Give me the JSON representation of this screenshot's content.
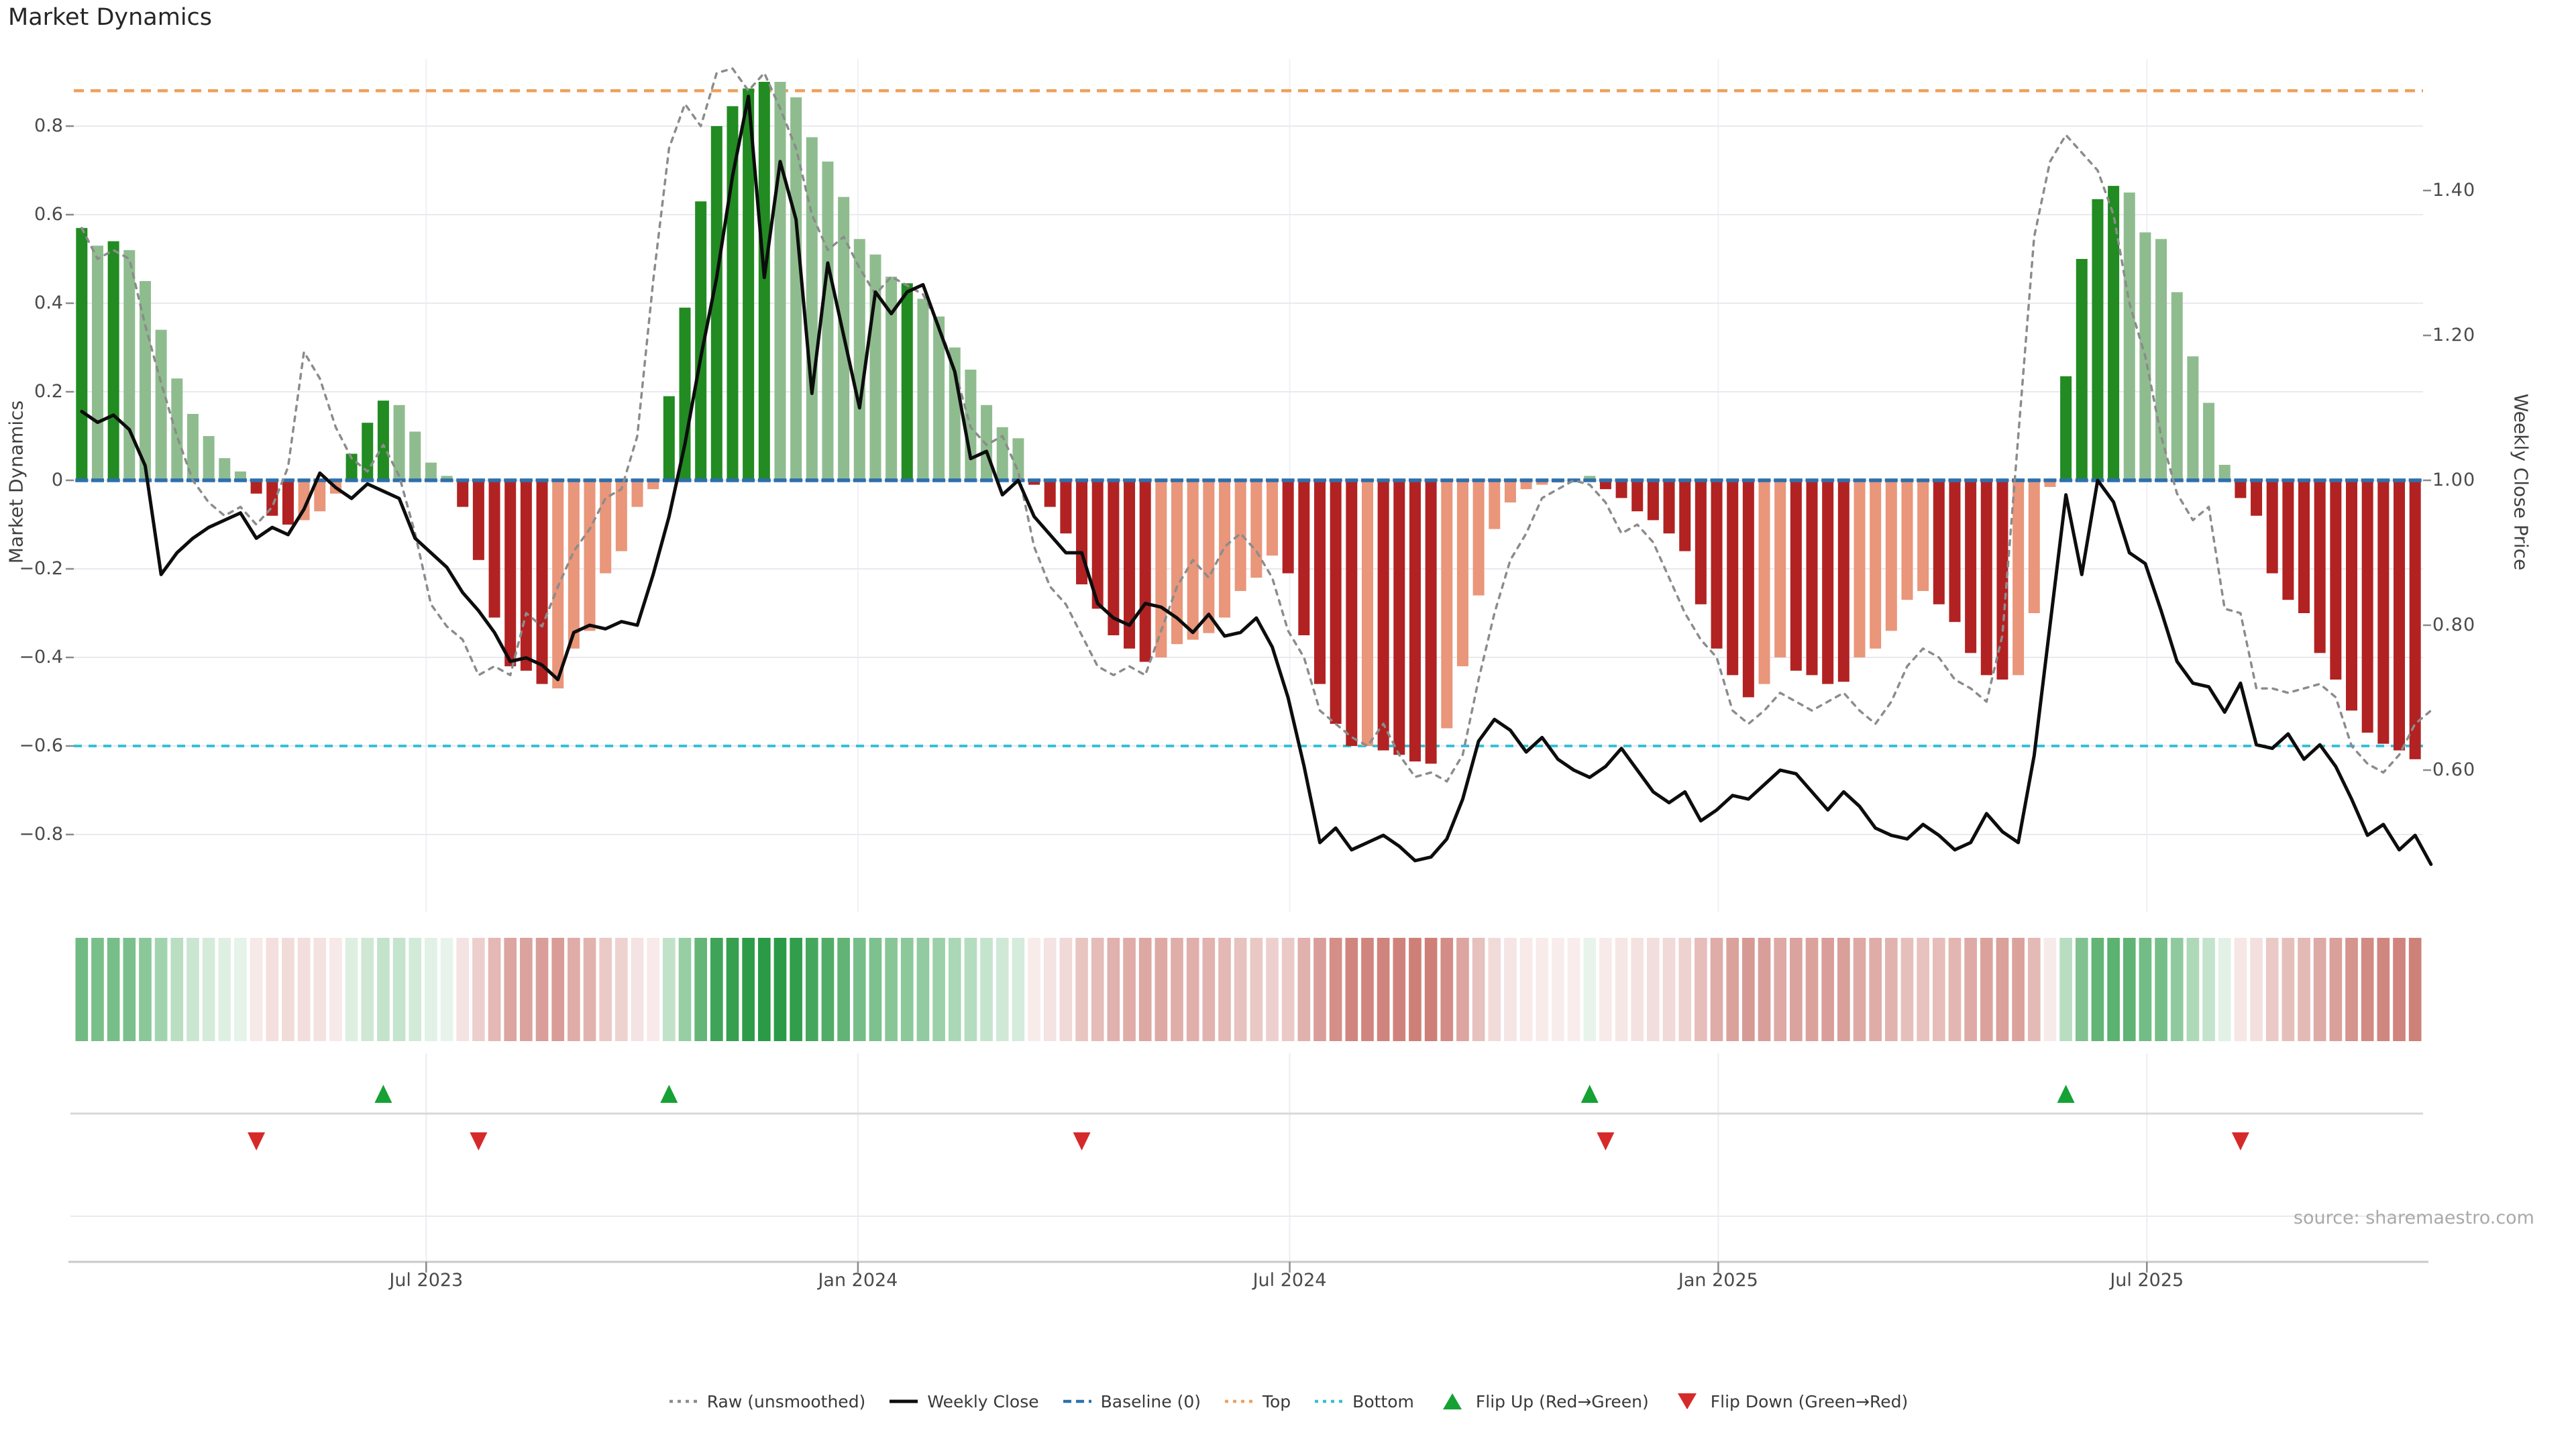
{
  "title": "Market Dynamics",
  "source": "source: sharemaestro.com",
  "axes": {
    "left": {
      "label": "Market Dynamics",
      "ticks": [
        {
          "v": 0.8,
          "label": "0.8"
        },
        {
          "v": 0.6,
          "label": "0.6"
        },
        {
          "v": 0.4,
          "label": "0.4"
        },
        {
          "v": 0.2,
          "label": "0.2"
        },
        {
          "v": 0.0,
          "label": "0"
        },
        {
          "v": -0.2,
          "label": "−0.2"
        },
        {
          "v": -0.4,
          "label": "−0.4"
        },
        {
          "v": -0.6,
          "label": "−0.6"
        },
        {
          "v": -0.8,
          "label": "−0.8"
        }
      ]
    },
    "right": {
      "label": "Weekly Close Price",
      "ticks": [
        {
          "v": 1.4,
          "label": "1.40"
        },
        {
          "v": 1.2,
          "label": "1.20"
        },
        {
          "v": 1.0,
          "label": "1.00"
        },
        {
          "v": 0.8,
          "label": "0.80"
        },
        {
          "v": 0.6,
          "label": "0.60"
        }
      ]
    },
    "x": {
      "ticks": [
        {
          "week": 21.7,
          "label": "Jul 2023"
        },
        {
          "week": 48.9,
          "label": "Jan 2024"
        },
        {
          "week": 76.1,
          "label": "Jul 2024"
        },
        {
          "week": 103.1,
          "label": "Jan 2025"
        },
        {
          "week": 130.1,
          "label": "Jul 2025"
        }
      ]
    }
  },
  "legend": [
    {
      "label": "Raw (unsmoothed)",
      "type": "dotted-line",
      "color": "#8c8c8c"
    },
    {
      "label": "Weekly Close",
      "type": "solid-line",
      "color": "#0d0d0d"
    },
    {
      "label": "Baseline (0)",
      "type": "dashed-line",
      "color": "#2e6fad"
    },
    {
      "label": "Top",
      "type": "dotted-line",
      "color": "#efa05a"
    },
    {
      "label": "Bottom",
      "type": "dotted-line",
      "color": "#35c1d6"
    },
    {
      "label": "Flip Up (Red→Green)",
      "type": "triangle-up",
      "color": "#16a134"
    },
    {
      "label": "Flip Down (Green→Red)",
      "type": "triangle-down",
      "color": "#d62a2a"
    }
  ],
  "chart_data": {
    "type": "composite",
    "x_unit": "week",
    "n": 148,
    "left_axis_range": [
      -0.976,
      0.952
    ],
    "right_axis_range": [
      0.4,
      1.58
    ],
    "grid": true,
    "ref_lines": {
      "baseline": 0.0,
      "top": 0.88,
      "bottom": -0.6
    },
    "palette": {
      "pos_strong": "#228B22",
      "pos_soft": "#8FBC8F",
      "neg_strong": "#B22222",
      "neg_soft": "#E9967A",
      "baseline": "#2e6fad",
      "top": "#efa05a",
      "bottom": "#35c1d6",
      "raw": "#8c8c8c",
      "close": "#0d0d0d",
      "flip_up": "#16a134",
      "flip_down": "#d62a2a",
      "heat_pos": [
        42,
        154,
        70
      ],
      "heat_neg": [
        188,
        82,
        72
      ]
    },
    "bars": {
      "name": "Market Dynamics (smoothed)",
      "values": [
        0.57,
        0.53,
        0.54,
        0.52,
        0.45,
        0.34,
        0.23,
        0.15,
        0.1,
        0.05,
        0.02,
        -0.03,
        -0.08,
        -0.1,
        -0.09,
        -0.07,
        -0.03,
        0.06,
        0.13,
        0.18,
        0.17,
        0.11,
        0.04,
        0.01,
        -0.06,
        -0.18,
        -0.31,
        -0.42,
        -0.43,
        -0.46,
        -0.47,
        -0.38,
        -0.34,
        -0.21,
        -0.16,
        -0.06,
        -0.02,
        0.19,
        0.39,
        0.63,
        0.8,
        0.845,
        0.885,
        0.9,
        0.9,
        0.865,
        0.775,
        0.72,
        0.64,
        0.545,
        0.51,
        0.46,
        0.445,
        0.41,
        0.37,
        0.3,
        0.25,
        0.17,
        0.12,
        0.095,
        -0.01,
        -0.06,
        -0.12,
        -0.235,
        -0.29,
        -0.35,
        -0.38,
        -0.41,
        -0.4,
        -0.37,
        -0.36,
        -0.345,
        -0.31,
        -0.25,
        -0.22,
        -0.17,
        -0.21,
        -0.35,
        -0.46,
        -0.55,
        -0.6,
        -0.6,
        -0.61,
        -0.62,
        -0.635,
        -0.64,
        -0.56,
        -0.42,
        -0.26,
        -0.11,
        -0.05,
        -0.02,
        -0.01,
        -0.005,
        -0.003,
        0.01,
        -0.02,
        -0.04,
        -0.07,
        -0.09,
        -0.12,
        -0.16,
        -0.28,
        -0.38,
        -0.44,
        -0.49,
        -0.46,
        -0.4,
        -0.43,
        -0.44,
        -0.46,
        -0.455,
        -0.4,
        -0.38,
        -0.34,
        -0.27,
        -0.25,
        -0.28,
        -0.32,
        -0.39,
        -0.44,
        -0.45,
        -0.44,
        -0.3,
        -0.015,
        0.235,
        0.5,
        0.635,
        0.665,
        0.65,
        0.56,
        0.545,
        0.425,
        0.28,
        0.175,
        0.035,
        -0.04,
        -0.08,
        -0.21,
        -0.27,
        -0.3,
        -0.39,
        -0.45,
        -0.52,
        -0.57,
        -0.595,
        -0.61,
        -0.63
      ],
      "color_tokens": [
        "D",
        "L",
        "D",
        "L",
        "L",
        "L",
        "L",
        "L",
        "L",
        "L",
        "L",
        "R",
        "R",
        "R",
        "S",
        "S",
        "S",
        "D",
        "D",
        "D",
        "L",
        "L",
        "L",
        "L",
        "R",
        "R",
        "R",
        "R",
        "R",
        "R",
        "S",
        "S",
        "S",
        "S",
        "S",
        "S",
        "S",
        "D",
        "D",
        "D",
        "D",
        "D",
        "D",
        "D",
        "L",
        "L",
        "L",
        "L",
        "L",
        "L",
        "L",
        "L",
        "D",
        "L",
        "L",
        "L",
        "L",
        "L",
        "L",
        "L",
        "R",
        "R",
        "R",
        "R",
        "R",
        "R",
        "R",
        "R",
        "S",
        "S",
        "S",
        "S",
        "S",
        "S",
        "S",
        "S",
        "R",
        "R",
        "R",
        "R",
        "R",
        "S",
        "R",
        "R",
        "R",
        "R",
        "S",
        "S",
        "S",
        "S",
        "S",
        "S",
        "S",
        "S",
        "S",
        "L",
        "R",
        "R",
        "R",
        "R",
        "R",
        "R",
        "R",
        "R",
        "R",
        "R",
        "S",
        "S",
        "R",
        "R",
        "R",
        "R",
        "S",
        "S",
        "S",
        "S",
        "S",
        "R",
        "R",
        "R",
        "R",
        "R",
        "S",
        "S",
        "S",
        "D",
        "D",
        "D",
        "D",
        "L",
        "L",
        "L",
        "L",
        "L",
        "L",
        "L",
        "R",
        "R",
        "R",
        "R",
        "R",
        "R",
        "R",
        "R",
        "R",
        "R",
        "R",
        "R"
      ]
    },
    "series": [
      {
        "name": "Weekly Close",
        "axis": "right",
        "style": "solid",
        "color": "#0d0d0d",
        "values": [
          1.095,
          1.08,
          1.09,
          1.07,
          1.02,
          0.87,
          0.9,
          0.92,
          0.935,
          0.945,
          0.955,
          0.92,
          0.935,
          0.925,
          0.96,
          1.01,
          0.99,
          0.975,
          0.995,
          0.985,
          0.975,
          0.92,
          0.9,
          0.88,
          0.845,
          0.82,
          0.79,
          0.75,
          0.755,
          0.745,
          0.725,
          0.79,
          0.8,
          0.795,
          0.805,
          0.8,
          0.87,
          0.95,
          1.05,
          1.17,
          1.28,
          1.42,
          1.53,
          1.28,
          1.44,
          1.36,
          1.12,
          1.3,
          1.2,
          1.1,
          1.26,
          1.23,
          1.26,
          1.27,
          1.21,
          1.15,
          1.03,
          1.04,
          0.98,
          1.0,
          0.95,
          0.925,
          0.9,
          0.9,
          0.83,
          0.81,
          0.8,
          0.83,
          0.825,
          0.81,
          0.79,
          0.815,
          0.785,
          0.79,
          0.81,
          0.77,
          0.7,
          0.606,
          0.5,
          0.52,
          0.49,
          0.5,
          0.51,
          0.495,
          0.475,
          0.48,
          0.505,
          0.56,
          0.64,
          0.67,
          0.655,
          0.625,
          0.645,
          0.615,
          0.6,
          0.59,
          0.605,
          0.63,
          0.6,
          0.57,
          0.555,
          0.57,
          0.53,
          0.545,
          0.565,
          0.56,
          0.58,
          0.6,
          0.595,
          0.57,
          0.545,
          0.57,
          0.55,
          0.52,
          0.51,
          0.505,
          0.525,
          0.51,
          0.49,
          0.5,
          0.54,
          0.515,
          0.5,
          0.62,
          0.8,
          0.98,
          0.87,
          1.0,
          0.97,
          0.9,
          0.885,
          0.82,
          0.75,
          0.72,
          0.715,
          0.68,
          0.72,
          0.635,
          0.63,
          0.65,
          0.615,
          0.635,
          0.605,
          0.56,
          0.51,
          0.525,
          0.49,
          0.51,
          0.47
        ]
      },
      {
        "name": "Raw (unsmoothed)",
        "axis": "left",
        "style": "dotted",
        "color": "#8c8c8c",
        "values": [
          0.57,
          0.5,
          0.52,
          0.5,
          0.35,
          0.22,
          0.1,
          0.0,
          -0.05,
          -0.08,
          -0.06,
          -0.1,
          -0.06,
          0.03,
          0.29,
          0.23,
          0.12,
          0.05,
          0.02,
          0.08,
          0.01,
          -0.12,
          -0.28,
          -0.33,
          -0.36,
          -0.44,
          -0.42,
          -0.44,
          -0.3,
          -0.33,
          -0.24,
          -0.16,
          -0.11,
          -0.04,
          -0.02,
          0.1,
          0.45,
          0.75,
          0.85,
          0.8,
          0.92,
          0.93,
          0.88,
          0.92,
          0.84,
          0.75,
          0.6,
          0.52,
          0.55,
          0.48,
          0.42,
          0.46,
          0.44,
          0.42,
          0.35,
          0.25,
          0.12,
          0.08,
          0.1,
          0.02,
          -0.15,
          -0.24,
          -0.28,
          -0.35,
          -0.42,
          -0.44,
          -0.42,
          -0.44,
          -0.34,
          -0.24,
          -0.18,
          -0.22,
          -0.15,
          -0.12,
          -0.16,
          -0.22,
          -0.34,
          -0.4,
          -0.52,
          -0.55,
          -0.58,
          -0.6,
          -0.55,
          -0.62,
          -0.67,
          -0.66,
          -0.68,
          -0.62,
          -0.45,
          -0.3,
          -0.18,
          -0.12,
          -0.04,
          -0.02,
          0.0,
          -0.01,
          -0.05,
          -0.12,
          -0.1,
          -0.14,
          -0.22,
          -0.3,
          -0.36,
          -0.4,
          -0.52,
          -0.55,
          -0.52,
          -0.48,
          -0.5,
          -0.52,
          -0.5,
          -0.48,
          -0.52,
          -0.55,
          -0.5,
          -0.42,
          -0.38,
          -0.4,
          -0.45,
          -0.47,
          -0.5,
          -0.35,
          0.1,
          0.55,
          0.72,
          0.78,
          0.74,
          0.7,
          0.6,
          0.4,
          0.28,
          0.1,
          -0.03,
          -0.09,
          -0.06,
          -0.29,
          -0.3,
          -0.47,
          -0.47,
          -0.48,
          -0.47,
          -0.46,
          -0.49,
          -0.6,
          -0.64,
          -0.66,
          -0.62,
          -0.55,
          -0.52
        ]
      }
    ],
    "heatmap": {
      "note": "color strip mirrors bar values",
      "from": "bars.values"
    },
    "flip_up_weeks": [
      19,
      37,
      95,
      125
    ],
    "flip_down_weeks": [
      11,
      25,
      63,
      96,
      136
    ]
  }
}
